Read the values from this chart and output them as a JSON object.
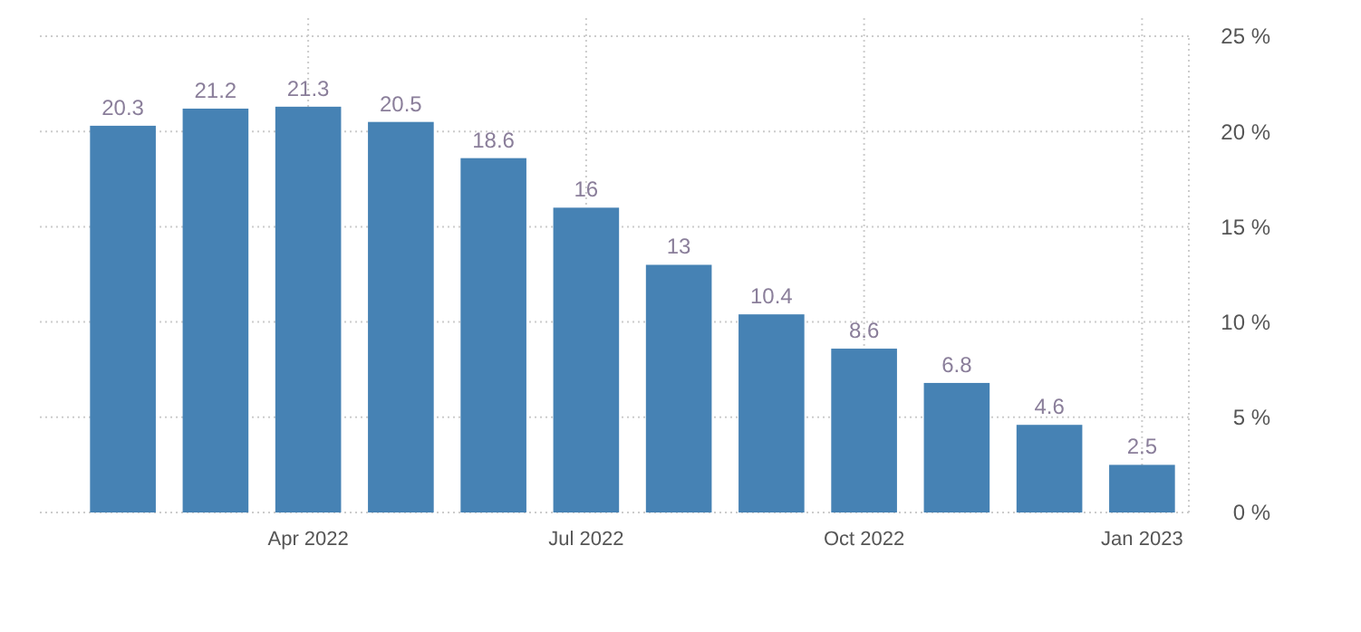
{
  "chart_data": {
    "type": "bar",
    "categories": [
      null,
      null,
      "Apr 2022",
      null,
      null,
      "Jul 2022",
      null,
      null,
      "Oct 2022",
      null,
      null,
      "Jan 2023"
    ],
    "values": [
      20.3,
      21.2,
      21.3,
      20.5,
      18.6,
      16,
      13,
      10.4,
      8.6,
      6.8,
      4.6,
      2.5
    ],
    "color": "#4682b4",
    "ylim": [
      0,
      25
    ],
    "yticks": [
      {
        "value": 0,
        "label": "0 %"
      },
      {
        "value": 5,
        "label": "5 %"
      },
      {
        "value": 10,
        "label": "10 %"
      },
      {
        "value": 15,
        "label": "15 %"
      },
      {
        "value": 20,
        "label": "20 %"
      },
      {
        "value": 25,
        "label": "25 %"
      }
    ],
    "grid": true,
    "data_labels": true
  }
}
